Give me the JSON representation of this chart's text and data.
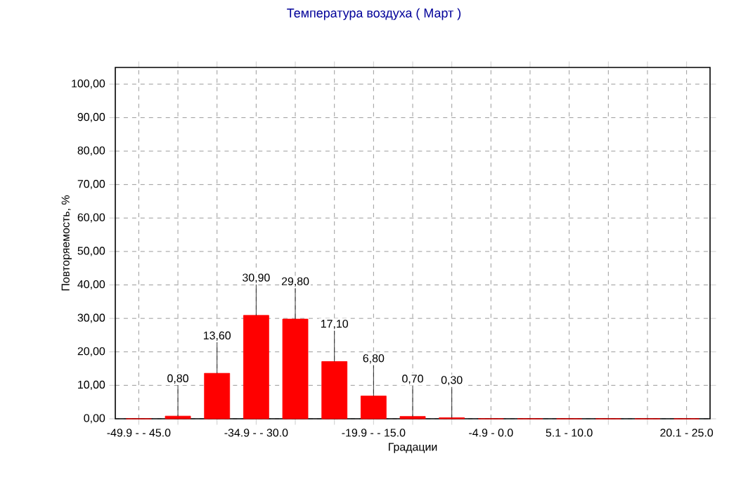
{
  "chart_data": {
    "type": "bar",
    "title": "Температура воздуха    ( Март )",
    "xlabel": "Градации",
    "ylabel": "Повторяемость, %",
    "categories": [
      "-49.9 - - 45.0",
      null,
      null,
      "-34.9 - - 30.0",
      null,
      null,
      "-19.9 - - 15.0",
      null,
      null,
      "-4.9 - 0.0",
      null,
      "5.1 - 10.0",
      null,
      null,
      "20.1 - 25.0"
    ],
    "values": [
      0,
      0.8,
      13.6,
      30.9,
      29.8,
      17.1,
      6.8,
      0.7,
      0.3,
      0,
      0,
      0,
      0,
      0,
      0
    ],
    "value_labels": [
      null,
      "0,80",
      "13,60",
      "30,90",
      "29,80",
      "17,10",
      "6,80",
      "0,70",
      "0,30",
      null,
      null,
      null,
      null,
      null,
      null
    ],
    "color": "#ff0000",
    "ylim": [
      0,
      105
    ],
    "yticks": [
      {
        "value": 0,
        "label": "0,00"
      },
      {
        "value": 10,
        "label": "10,00"
      },
      {
        "value": 20,
        "label": "20,00"
      },
      {
        "value": 30,
        "label": "30,00"
      },
      {
        "value": 40,
        "label": "40,00"
      },
      {
        "value": 50,
        "label": "50,00"
      },
      {
        "value": 60,
        "label": "60,00"
      },
      {
        "value": 70,
        "label": "70,00"
      },
      {
        "value": 80,
        "label": "80,00"
      },
      {
        "value": 90,
        "label": "90,00"
      },
      {
        "value": 100,
        "label": "100,00"
      }
    ],
    "grid": true
  }
}
